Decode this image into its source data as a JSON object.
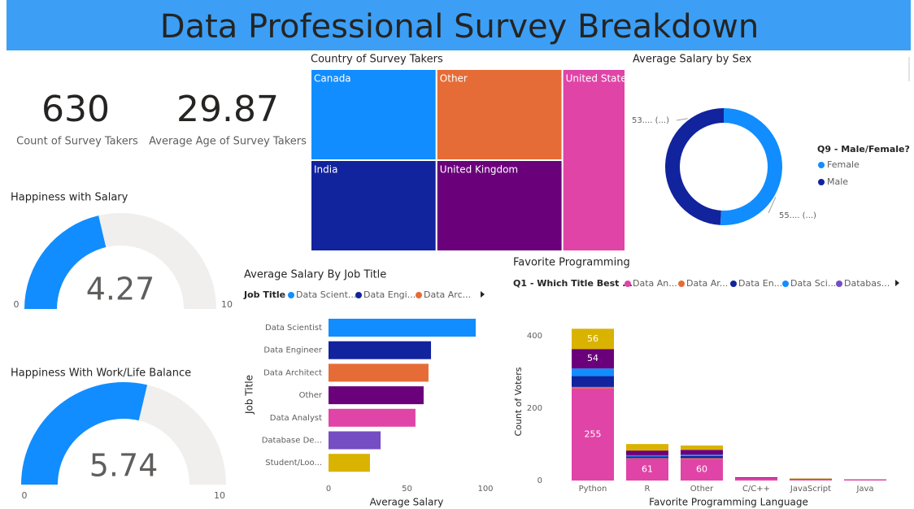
{
  "title": "Data Professional Survey Breakdown",
  "cards": [
    {
      "value": 630,
      "label": "Count of Survey Takers"
    },
    {
      "value": 29.87,
      "label": "Average Age of Survey Takers"
    }
  ],
  "chart_data": [
    {
      "type": "gauge",
      "title": "Happiness with Salary",
      "value": 4.27,
      "min": 0,
      "max": 10,
      "color": "#118dff"
    },
    {
      "type": "gauge",
      "title": "Happiness With Work/Life Balance",
      "value": 5.74,
      "min": 0,
      "max": 10,
      "color": "#118dff"
    },
    {
      "type": "treemap",
      "title": "Country of Survey Takers",
      "categories": [
        "Canada",
        "Other",
        "United States",
        "India",
        "United Kingdom"
      ],
      "values": [
        126,
        126,
        126,
        126,
        126
      ],
      "colors": [
        "#118dff",
        "#e66c37",
        "#e044a7",
        "#12239e",
        "#6b007b"
      ]
    },
    {
      "type": "donut",
      "title": "Average Salary by Sex",
      "legend_title": "Q9 - Male/Female?",
      "categories": [
        "Female",
        "Male"
      ],
      "values": [
        55,
        53
      ],
      "value_labels": [
        "55.... (...)",
        "53.... (...)"
      ],
      "colors": [
        "#118dff",
        "#12239e"
      ]
    },
    {
      "type": "hbar",
      "title": "Average Salary By Job Title",
      "legend_title": "Job Title",
      "legend": [
        "Data Scient...",
        "Data Engi...",
        "Data Arc..."
      ],
      "categories": [
        "Data Scientist",
        "Data Engineer",
        "Data Architect",
        "Other",
        "Data Analyst",
        "Database De...",
        "Student/Loo..."
      ],
      "values": [
        93.8,
        65.3,
        63.7,
        60.6,
        55.4,
        33.2,
        26.4
      ],
      "colors": [
        "#118dff",
        "#12239e",
        "#e66c37",
        "#6b007b",
        "#e044a7",
        "#744ec2",
        "#d9b300"
      ],
      "xlim": [
        0,
        100
      ],
      "xticks": [
        0,
        50,
        100
      ],
      "xlabel": "Average Salary",
      "ylabel": "Job Title"
    },
    {
      "type": "stacked_bar",
      "title": "Favorite Programming",
      "legend_title": "Q1 - Which Title Best ...",
      "categories": [
        "Python",
        "R",
        "Other",
        "C/C++",
        "JavaScript",
        "Java"
      ],
      "series": [
        {
          "name": "Data An...",
          "color": "#e044a7",
          "values": [
            255,
            61,
            60,
            7,
            2,
            2
          ]
        },
        {
          "name": "Data Ar...",
          "color": "#e66c37",
          "values": [
            4,
            1,
            2,
            0,
            1,
            0
          ]
        },
        {
          "name": "Data En...",
          "color": "#12239e",
          "values": [
            30,
            5,
            6,
            0,
            1,
            0
          ]
        },
        {
          "name": "Data Sci...",
          "color": "#118dff",
          "values": [
            21,
            3,
            3,
            0,
            0,
            0
          ]
        },
        {
          "name": "Databas...",
          "color": "#744ec2",
          "values": [
            0,
            0,
            1,
            0,
            0,
            0
          ]
        },
        {
          "color": "#6b007b",
          "values": [
            54,
            13,
            13,
            2,
            1,
            1
          ]
        },
        {
          "color": "#d9b300",
          "values": [
            56,
            18,
            12,
            0,
            1,
            0
          ]
        }
      ],
      "ylim": [
        0,
        450
      ],
      "yticks": [
        0,
        200,
        400
      ],
      "xlabel": "Favorite Programming Language",
      "ylabel": "Count of Voters"
    }
  ]
}
